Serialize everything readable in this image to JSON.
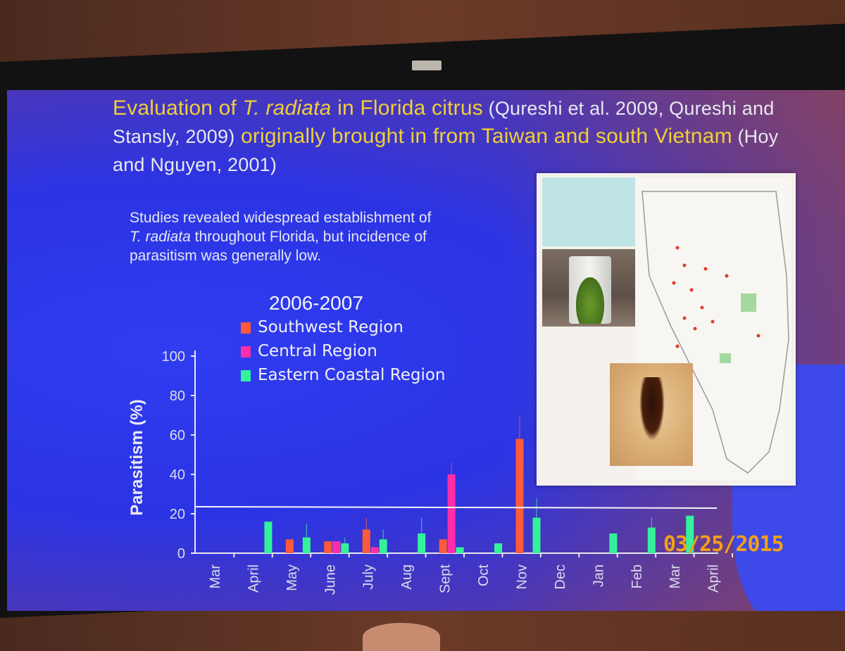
{
  "slide": {
    "title_part1": "Evaluation of ",
    "title_species": "T. radiata",
    "title_part2": " in Florida citrus",
    "title_cite1": " (Qureshi et al. 2009, Qureshi and Stansly, 2009)",
    "title_part3": " originally brought in from Taiwan and south Vietnam",
    "title_cite2": " (Hoy and Nguyen, 2001)",
    "summary_line1": "Studies revealed widespread establishment of",
    "summary_species": "T. radiata",
    "summary_line2": " throughout Florida, but incidence of",
    "summary_line3": "parasitism was generally low."
  },
  "date_stamp": "03/25/2015",
  "colors": {
    "southwest": "#ff5a3a",
    "central": "#ff2ea8",
    "eastern": "#33f29a",
    "title_yellow": "#f1cf35"
  },
  "chart_data": {
    "type": "bar",
    "title": "2006-2007",
    "ylabel": "Parasitism (%)",
    "xlabel": "",
    "ylim": [
      0,
      100
    ],
    "yticks": [
      "0",
      "20",
      "40",
      "60",
      "80",
      "100"
    ],
    "categories": [
      "Mar",
      "April",
      "May",
      "June",
      "July",
      "Aug",
      "Sept",
      "Oct",
      "Nov",
      "Dec",
      "Jan",
      "Feb",
      "Mar",
      "April"
    ],
    "series": [
      {
        "name": "Southwest Region",
        "color": "#ff5a3a",
        "values": [
          null,
          null,
          7,
          6,
          12,
          null,
          7,
          null,
          58,
          null,
          null,
          null,
          null,
          null
        ],
        "errors": [
          null,
          null,
          0,
          0,
          6,
          null,
          0,
          null,
          12,
          null,
          null,
          null,
          null,
          null
        ]
      },
      {
        "name": "Central Region",
        "color": "#ff2ea8",
        "values": [
          null,
          null,
          null,
          6,
          3,
          null,
          40,
          null,
          null,
          null,
          null,
          null,
          null,
          null
        ],
        "errors": [
          null,
          null,
          null,
          0,
          0,
          null,
          6,
          null,
          null,
          null,
          null,
          null,
          null,
          null
        ]
      },
      {
        "name": "Eastern Coastal Region",
        "color": "#33f29a",
        "values": [
          null,
          16,
          8,
          5,
          7,
          10,
          3,
          5,
          18,
          null,
          10,
          13,
          19,
          null
        ],
        "errors": [
          null,
          0,
          7,
          3,
          5,
          8,
          0,
          0,
          10,
          null,
          0,
          5,
          0,
          null
        ]
      }
    ],
    "reference_line_value": 22.5,
    "legend_position": "top-center"
  }
}
